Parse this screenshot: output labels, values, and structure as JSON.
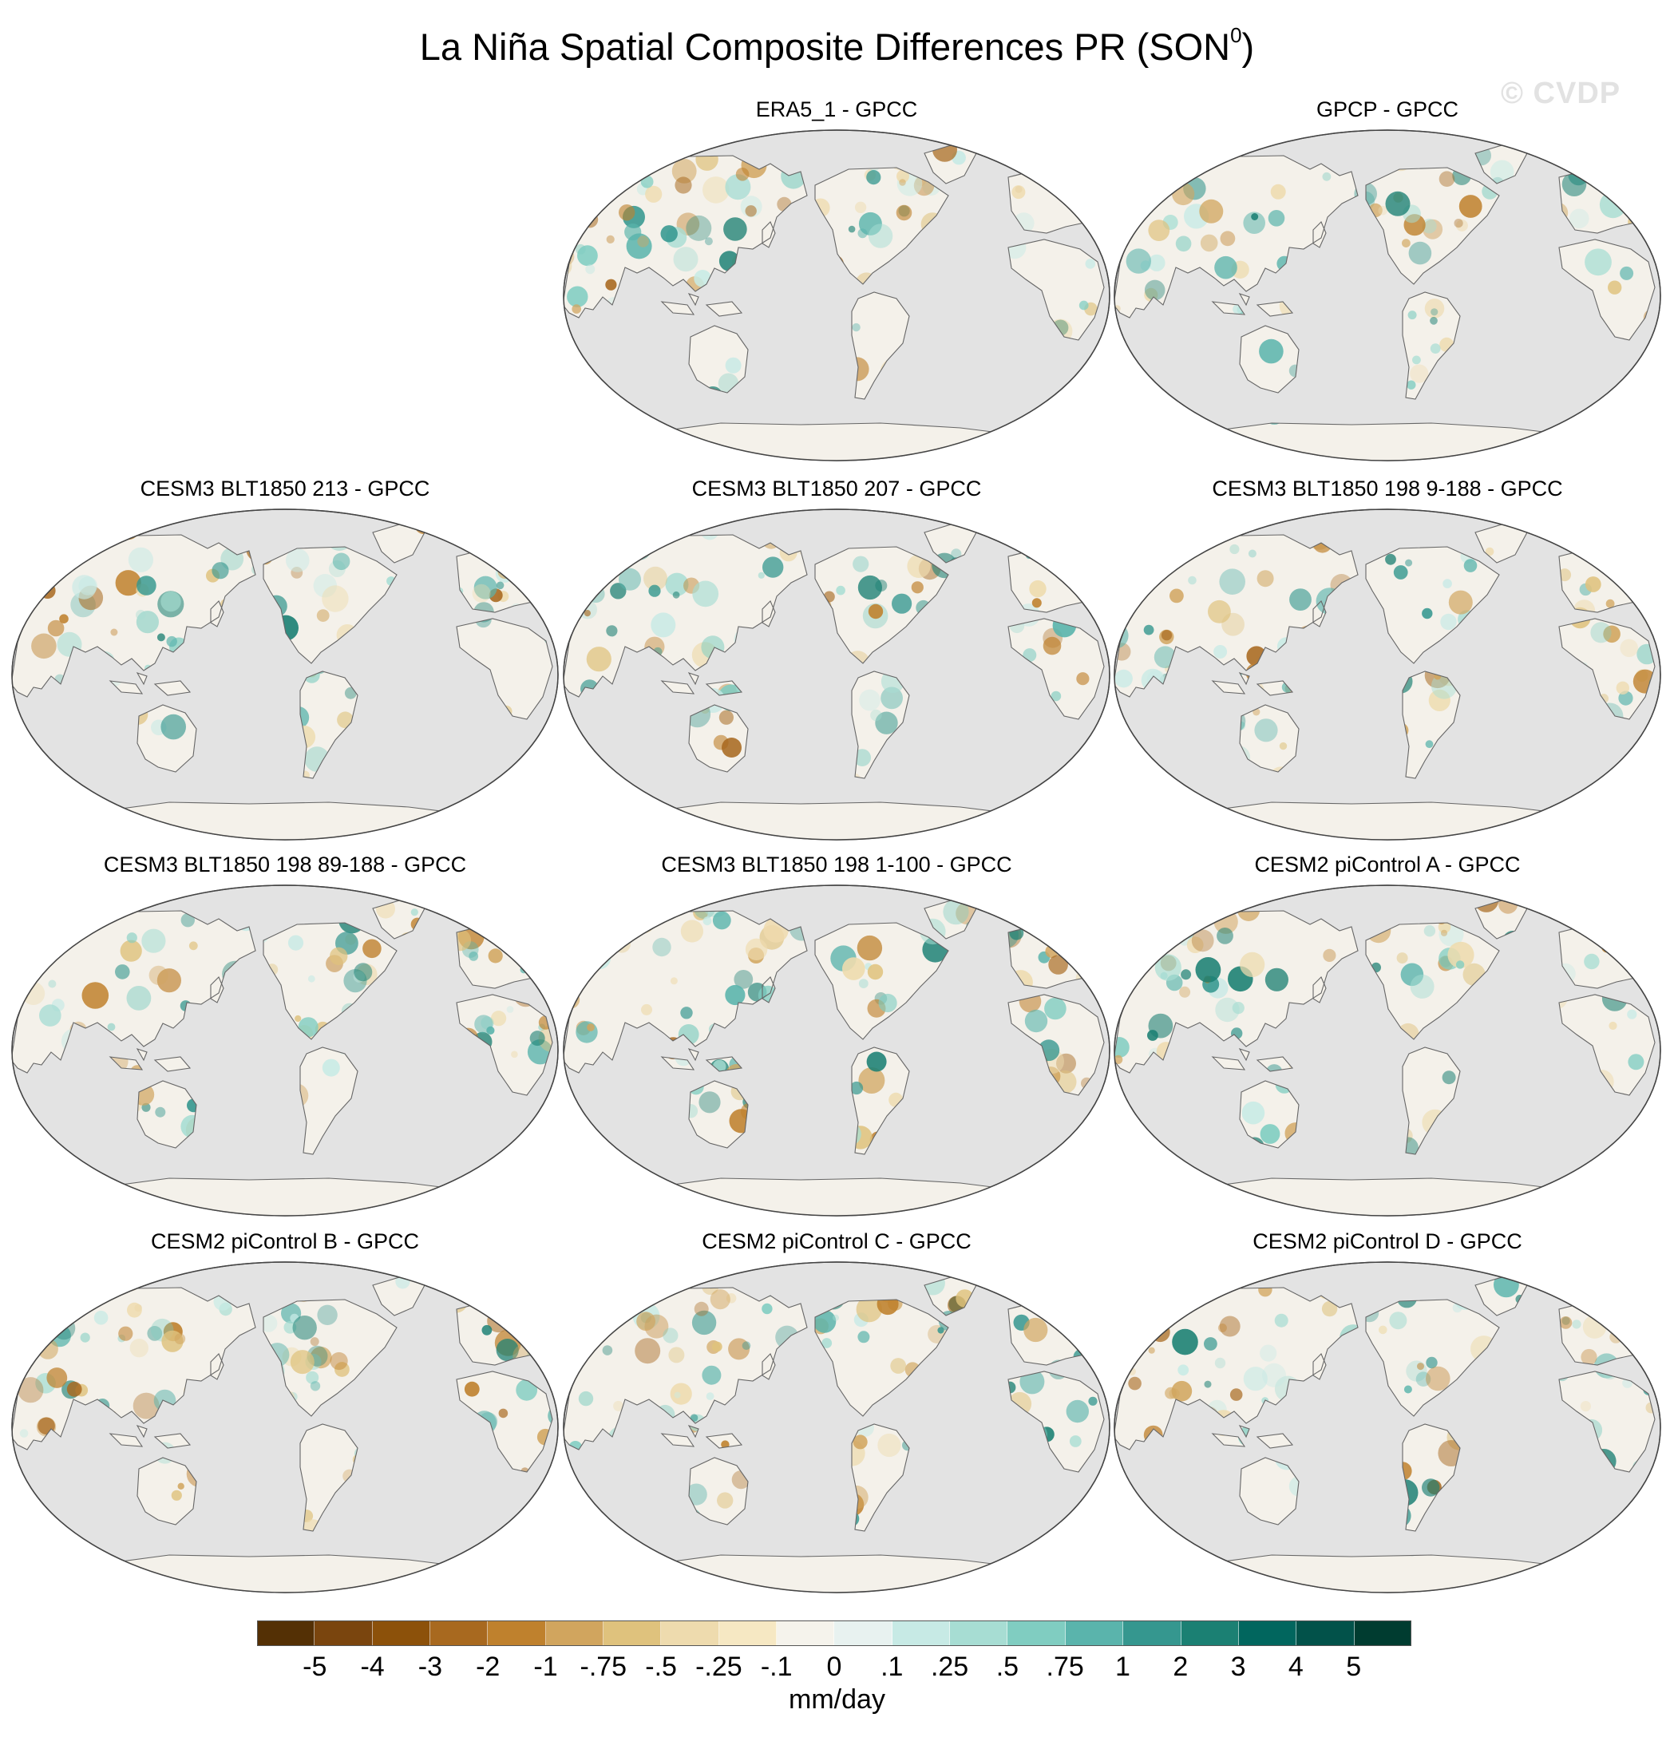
{
  "title": {
    "text": "La Niña Spatial Composite Differences PR (SON",
    "superscript": "0",
    "closing": ")"
  },
  "watermark": "© CVDP",
  "panels": [
    {
      "title": "ERA5_1 - GPCC"
    },
    {
      "title": "GPCP - GPCC"
    },
    {
      "title": "CESM3 BLT1850 213 - GPCC"
    },
    {
      "title": "CESM3 BLT1850 207 - GPCC"
    },
    {
      "title": "CESM3 BLT1850 198 9-188 - GPCC"
    },
    {
      "title": "CESM3 BLT1850 198 89-188 - GPCC"
    },
    {
      "title": "CESM3 BLT1850 198 1-100 - GPCC"
    },
    {
      "title": "CESM2 piControl A - GPCC"
    },
    {
      "title": "CESM2 piControl B - GPCC"
    },
    {
      "title": "CESM2 piControl C - GPCC"
    },
    {
      "title": "CESM2 piControl D - GPCC"
    }
  ],
  "colorbar": {
    "labels": [
      "-5",
      "-4",
      "-3",
      "-2",
      "-1",
      "-.75",
      "-.5",
      "-.25",
      "-.1",
      "0",
      ".1",
      ".25",
      ".5",
      ".75",
      "1",
      "2",
      "3",
      "4",
      "5"
    ],
    "colors": [
      "#543005",
      "#7a450e",
      "#8c510a",
      "#a8691f",
      "#bf812d",
      "#d1a55e",
      "#dfc27d",
      "#eedbae",
      "#f6e8c3",
      "#f5f3ec",
      "#e8f2f0",
      "#c7eae5",
      "#a7ddd3",
      "#80cdc1",
      "#5ab4ac",
      "#35978f",
      "#1b8073",
      "#01665e",
      "#02524a",
      "#003c30"
    ],
    "units": "mm/day"
  },
  "map": {
    "ocean_color": "#e3e3e3",
    "land_color": "#f4f1ea",
    "coast_color": "#666666",
    "projection": "Robinson, Pacific-centred"
  }
}
